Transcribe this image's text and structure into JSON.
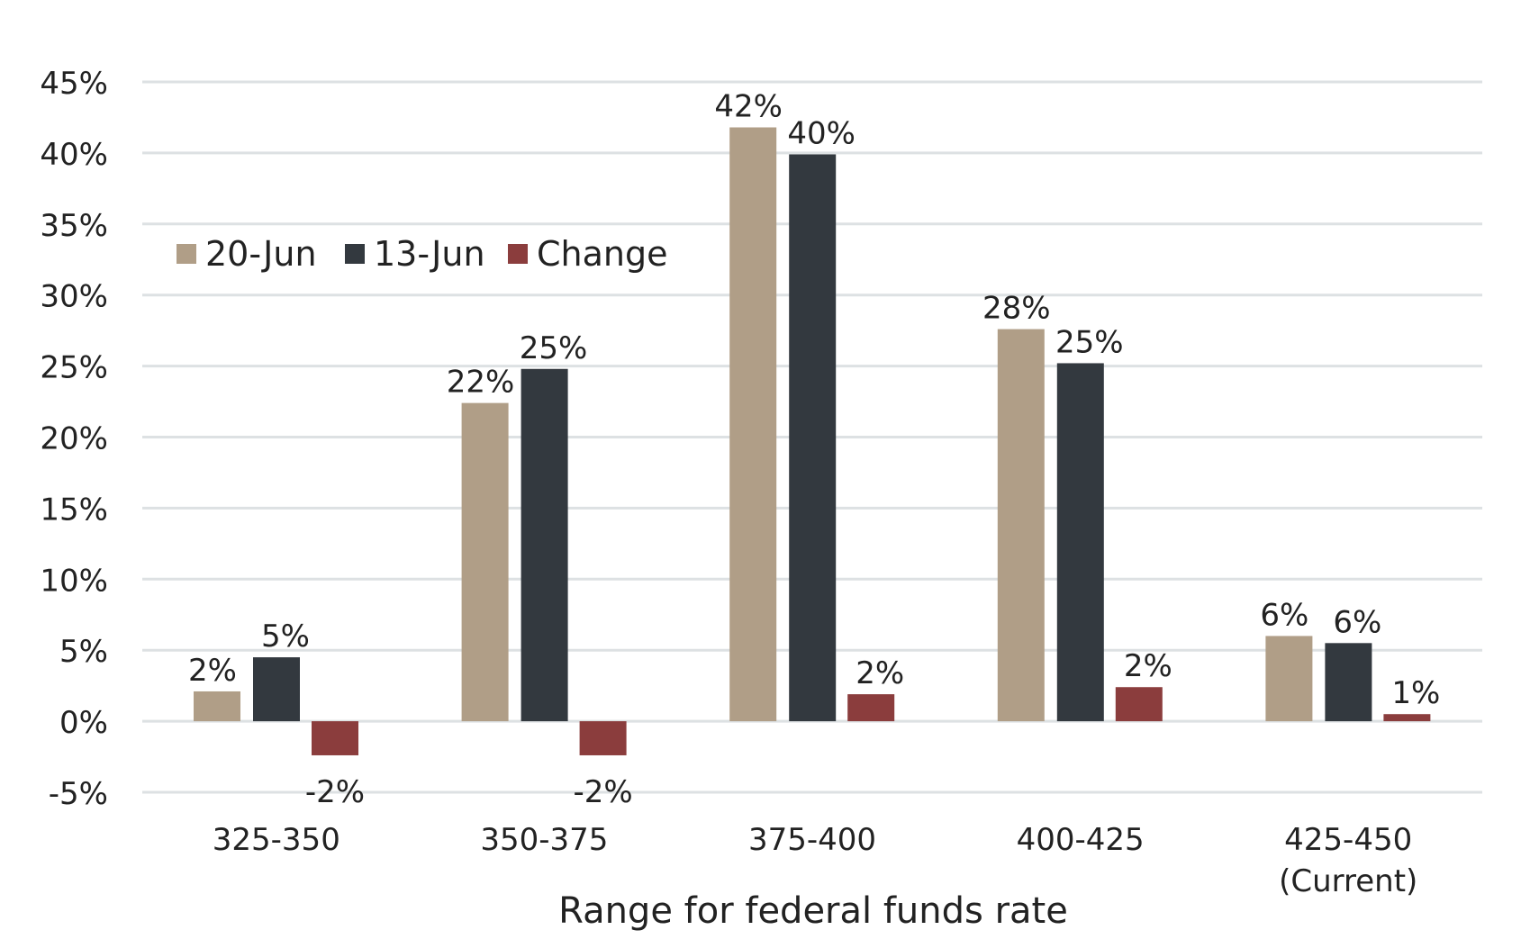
{
  "chart_data": {
    "type": "bar",
    "title": "",
    "xlabel": "Range for federal funds rate",
    "ylabel": "",
    "categories": [
      "325-350",
      "350-375",
      "375-400",
      "400-425",
      "425-450\n(Current)"
    ],
    "ylim": [
      -5,
      45
    ],
    "yticks": [
      "-5%",
      "0%",
      "5%",
      "10%",
      "15%",
      "20%",
      "25%",
      "30%",
      "35%",
      "40%",
      "45%"
    ],
    "grid": true,
    "legend_position": "top-left",
    "series": [
      {
        "name": "20-Jun",
        "color": "#b09e87",
        "values": [
          2.1,
          22.4,
          41.8,
          27.6,
          6.0
        ],
        "labels": [
          "2%",
          "22%",
          "42%",
          "28%",
          "6%"
        ]
      },
      {
        "name": "13-Jun",
        "color": "#33393f",
        "values": [
          4.5,
          24.8,
          39.9,
          25.2,
          5.5
        ],
        "labels": [
          "5%",
          "25%",
          "40%",
          "25%",
          "6%"
        ]
      },
      {
        "name": "Change",
        "color": "#8b3d3d",
        "values": [
          -2.4,
          -2.4,
          1.9,
          2.4,
          0.5
        ],
        "labels": [
          "-2%",
          "-2%",
          "2%",
          "2%",
          "1%"
        ]
      }
    ]
  }
}
